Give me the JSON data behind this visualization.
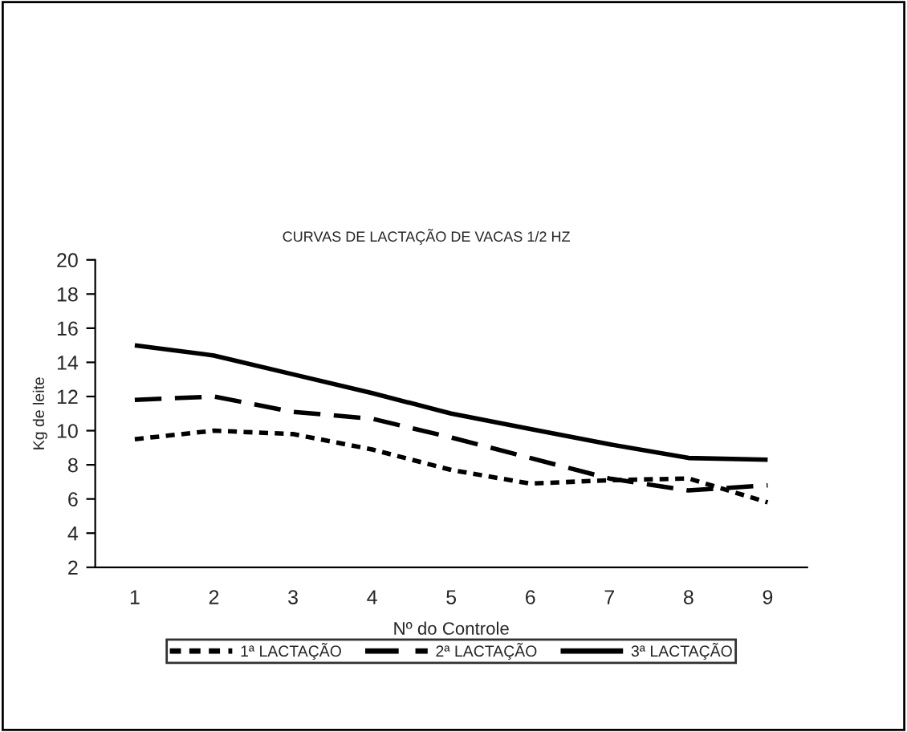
{
  "chart_data": {
    "type": "line",
    "title": "CURVAS DE LACTAÇÃO DE VACAS 1/2 HZ",
    "xlabel": "Nº do Controle",
    "ylabel": "Kg de leite",
    "categories": [
      "1",
      "2",
      "3",
      "4",
      "5",
      "6",
      "7",
      "8",
      "9"
    ],
    "series": [
      {
        "name": "1ª LACTAÇÃO",
        "color": "#000000",
        "line_style": "dotted",
        "values": [
          9.5,
          10.0,
          9.8,
          8.9,
          7.7,
          6.9,
          7.1,
          7.2,
          5.8
        ]
      },
      {
        "name": "2ª LACTAÇÃO",
        "color": "#000000",
        "line_style": "dashed",
        "values": [
          11.8,
          12.0,
          11.1,
          10.7,
          9.6,
          8.4,
          7.2,
          6.5,
          6.8
        ]
      },
      {
        "name": "3ª LACTAÇÃO",
        "color": "#000000",
        "line_style": "solid",
        "values": [
          15.0,
          14.4,
          13.3,
          12.2,
          11.0,
          10.1,
          9.2,
          8.4,
          8.3
        ]
      }
    ],
    "ylim": [
      2,
      20
    ],
    "yticks": [
      2,
      4,
      6,
      8,
      10,
      12,
      14,
      16,
      18,
      20
    ],
    "grid": false,
    "legend": "bottom",
    "marker": "none"
  }
}
